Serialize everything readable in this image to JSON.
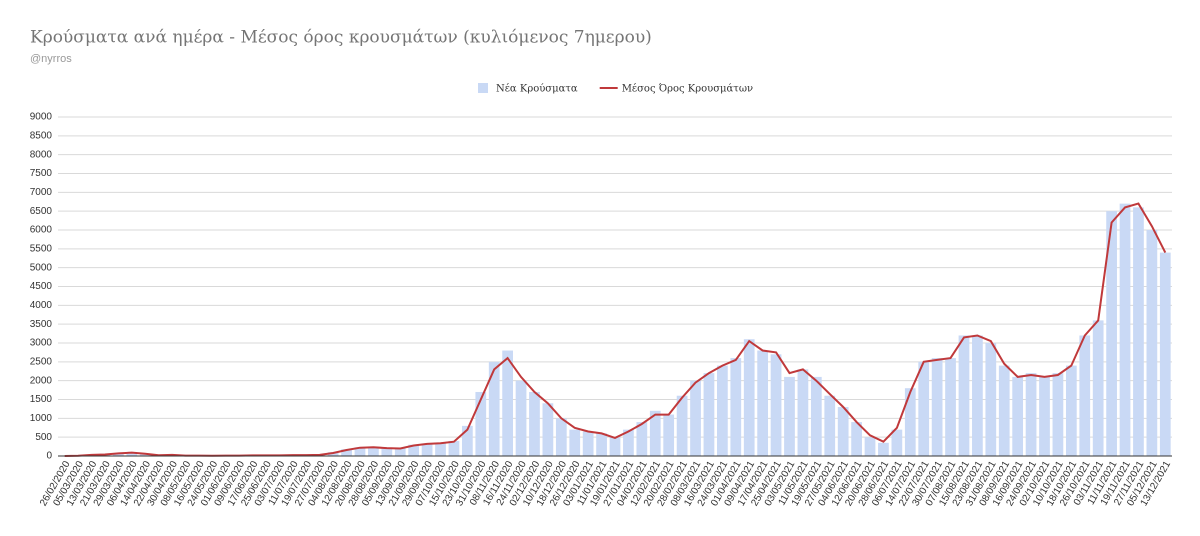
{
  "chart_data": {
    "type": "bar-line",
    "title": "Κρούσματα ανά ημέρα - Μέσος όρος κρουσμάτων (κυλιόμενος 7ημερου)",
    "subtitle": "@nyrros",
    "categories": [
      "26/02/2020",
      "05/03/2020",
      "13/03/2020",
      "21/03/2020",
      "29/03/2020",
      "06/04/2020",
      "14/04/2020",
      "22/04/2020",
      "30/04/2020",
      "08/05/2020",
      "16/05/2020",
      "24/05/2020",
      "01/06/2020",
      "09/06/2020",
      "17/06/2020",
      "25/06/2020",
      "03/07/2020",
      "11/07/2020",
      "19/07/2020",
      "27/07/2020",
      "04/08/2020",
      "12/08/2020",
      "20/08/2020",
      "28/08/2020",
      "05/09/2020",
      "13/09/2020",
      "21/09/2020",
      "29/09/2020",
      "07/10/2020",
      "15/10/2020",
      "23/10/2020",
      "31/10/2020",
      "08/11/2020",
      "16/11/2020",
      "24/11/2020",
      "02/12/2020",
      "10/12/2020",
      "18/12/2020",
      "26/12/2020",
      "03/01/2021",
      "11/01/2021",
      "19/01/2021",
      "27/01/2021",
      "04/02/2021",
      "12/02/2021",
      "20/02/2021",
      "28/02/2021",
      "08/03/2021",
      "16/03/2021",
      "24/03/2021",
      "01/04/2021",
      "09/04/2021",
      "17/04/2021",
      "25/04/2021",
      "03/05/2021",
      "11/05/2021",
      "19/05/2021",
      "27/05/2021",
      "04/06/2021",
      "12/06/2021",
      "20/06/2021",
      "28/06/2021",
      "06/07/2021",
      "14/07/2021",
      "22/07/2021",
      "30/07/2021",
      "07/08/2021",
      "15/08/2021",
      "23/08/2021",
      "31/08/2021",
      "08/09/2021",
      "16/09/2021",
      "24/09/2021",
      "02/10/2021",
      "10/10/2021",
      "18/10/2021",
      "26/10/2021",
      "03/11/2021",
      "11/11/2021",
      "19/11/2021",
      "27/11/2021",
      "05/12/2021",
      "13/12/2021"
    ],
    "series": [
      {
        "name": "Νέα Κρούσματα",
        "type": "bar",
        "color": "#c9d9f5",
        "values": [
          0,
          10,
          40,
          60,
          80,
          100,
          60,
          20,
          20,
          10,
          10,
          5,
          10,
          15,
          20,
          15,
          20,
          30,
          25,
          40,
          100,
          180,
          230,
          250,
          200,
          220,
          300,
          320,
          350,
          400,
          800,
          1700,
          2500,
          2800,
          2000,
          1700,
          1400,
          1000,
          700,
          650,
          600,
          500,
          700,
          900,
          1200,
          1100,
          1600,
          2000,
          2200,
          2400,
          2600,
          3100,
          2800,
          2700,
          2100,
          2300,
          2100,
          1600,
          1300,
          900,
          500,
          350,
          700,
          1800,
          2500,
          2600,
          2600,
          3200,
          3200,
          3000,
          2400,
          2100,
          2200,
          2100,
          2200,
          2400,
          3200,
          3600,
          6500,
          6700,
          6600,
          6000,
          5400
        ]
      },
      {
        "name": "Μέσος Όρος Κρουσμάτων",
        "type": "line",
        "color": "#c0393b",
        "values": [
          0,
          5,
          30,
          40,
          70,
          90,
          60,
          20,
          30,
          10,
          10,
          5,
          10,
          10,
          15,
          15,
          15,
          25,
          25,
          30,
          80,
          160,
          220,
          230,
          210,
          200,
          280,
          320,
          340,
          380,
          700,
          1500,
          2300,
          2600,
          2100,
          1700,
          1400,
          1000,
          750,
          650,
          600,
          480,
          650,
          850,
          1100,
          1100,
          1550,
          1950,
          2200,
          2400,
          2550,
          3050,
          2800,
          2750,
          2200,
          2300,
          2000,
          1650,
          1300,
          900,
          550,
          380,
          750,
          1700,
          2500,
          2550,
          2600,
          3150,
          3200,
          3050,
          2450,
          2100,
          2150,
          2100,
          2150,
          2400,
          3200,
          3600,
          6200,
          6600,
          6700,
          6100,
          5400
        ]
      }
    ],
    "ylim": [
      0,
      9000
    ],
    "yticks": [
      0,
      500,
      1000,
      1500,
      2000,
      2500,
      3000,
      3500,
      4000,
      4500,
      5000,
      5500,
      6000,
      6500,
      7000,
      7500,
      8000,
      8500,
      9000
    ],
    "grid": true,
    "legend": "top"
  }
}
